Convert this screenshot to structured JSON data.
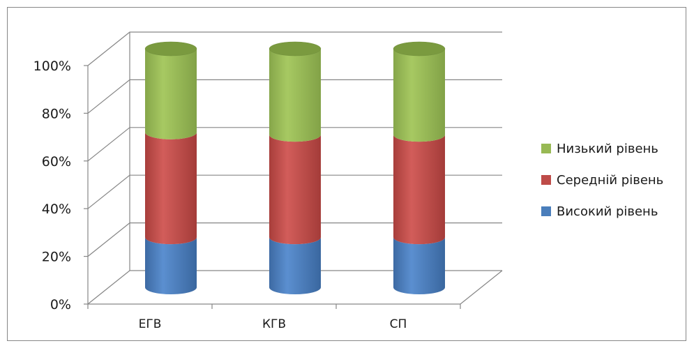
{
  "chart_data": {
    "type": "bar",
    "stacked": true,
    "percent_stacked": true,
    "three_d": true,
    "bar_shape": "cylinder",
    "categories": [
      "ЕГВ",
      "КГВ",
      "СП"
    ],
    "series": [
      {
        "name": "Високий рівень",
        "values": [
          21,
          21,
          21
        ],
        "color": "#4a7ebb"
      },
      {
        "name": "Середній рівень",
        "values": [
          44,
          43,
          43
        ],
        "color": "#be4b48"
      },
      {
        "name": "Низький рівень",
        "values": [
          35,
          36,
          36
        ],
        "color": "#98b954"
      }
    ],
    "ylim": [
      0,
      100
    ],
    "yticks": [
      "0%",
      "20%",
      "40%",
      "60%",
      "80%",
      "100%"
    ],
    "grid": true,
    "legend_position": "right",
    "title": "",
    "xlabel": "",
    "ylabel": ""
  },
  "legend": {
    "items": [
      {
        "label": "Низький рівень",
        "color": "#98b954"
      },
      {
        "label": "Середній рівень",
        "color": "#be4b48"
      },
      {
        "label": "Високий рівень",
        "color": "#4a7ebb"
      }
    ]
  }
}
